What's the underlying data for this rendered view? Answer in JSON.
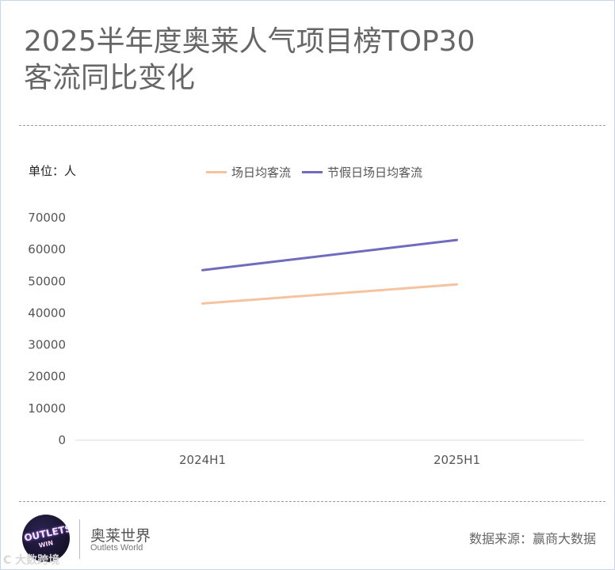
{
  "header": {
    "title_line1": "2025半年度奥莱人气项目榜TOP30",
    "title_line2": "客流同比变化"
  },
  "unit_label": "单位：人",
  "footer": {
    "logo_text": "OUTLETS",
    "logo_sub": "WIN",
    "brand_cn": "奥莱世界",
    "brand_en": "Outlets World",
    "source": "数据来源：赢商大数据",
    "watermark": "C 大数跨境"
  },
  "colors": {
    "series1": "#f6c3a0",
    "series2": "#6f6bbd",
    "axis": "#d9d9d9"
  },
  "chart_data": {
    "type": "line",
    "categories": [
      "2024H1",
      "2025H1"
    ],
    "series": [
      {
        "name": "场日均客流",
        "values": [
          43000,
          49000
        ]
      },
      {
        "name": "节假日场日均客流",
        "values": [
          53500,
          63000
        ]
      }
    ],
    "y_ticks": [
      0,
      10000,
      20000,
      30000,
      40000,
      50000,
      60000,
      70000
    ],
    "ylim": [
      0,
      70000
    ],
    "grid": false,
    "legend": "top"
  }
}
